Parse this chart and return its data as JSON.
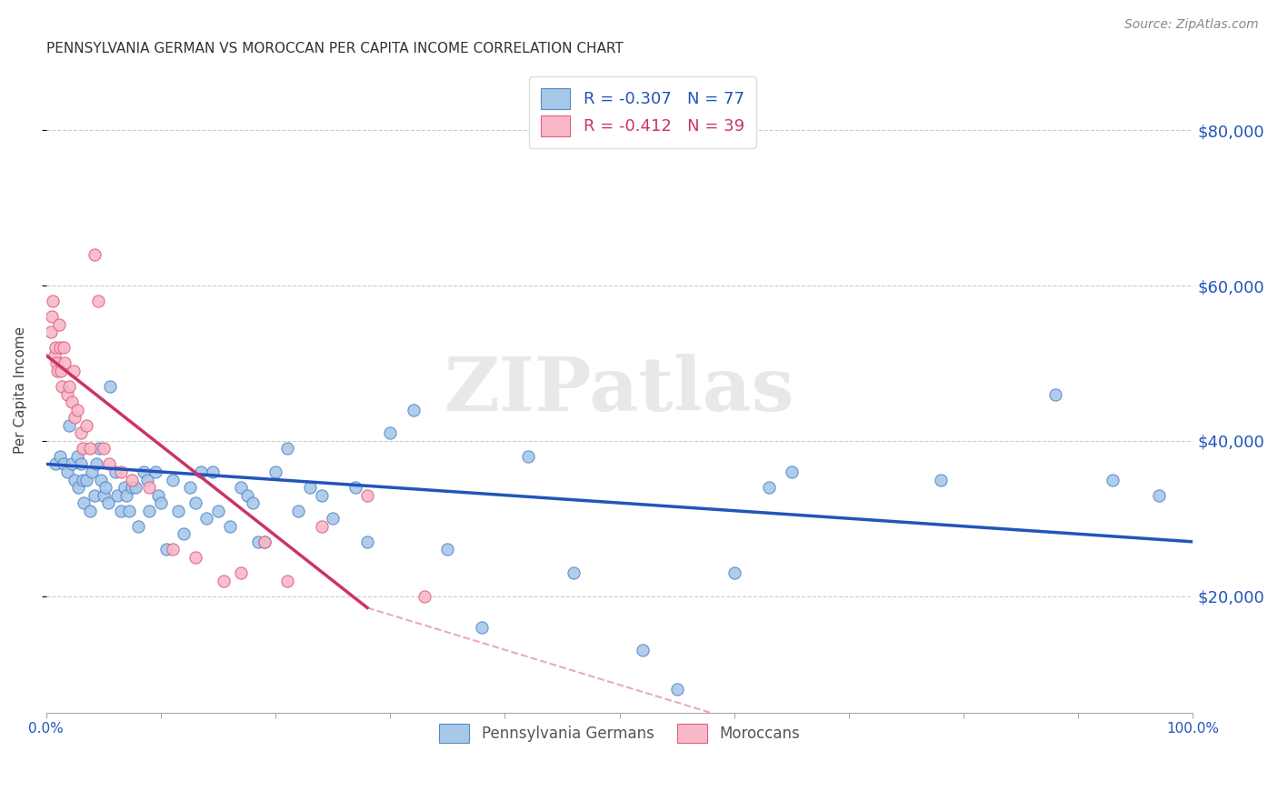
{
  "title": "PENNSYLVANIA GERMAN VS MOROCCAN PER CAPITA INCOME CORRELATION CHART",
  "source": "Source: ZipAtlas.com",
  "ylabel": "Per Capita Income",
  "xlim": [
    0.0,
    1.0
  ],
  "ylim": [
    5000,
    88000
  ],
  "yticks": [
    20000,
    40000,
    60000,
    80000
  ],
  "ytick_labels": [
    "$20,000",
    "$40,000",
    "$60,000",
    "$80,000"
  ],
  "legend_text_blue": "R = -0.307   N = 77",
  "legend_text_pink": "R = -0.412   N = 39",
  "legend_label_blue": "Pennsylvania Germans",
  "legend_label_pink": "Moroccans",
  "watermark": "ZIPatlas",
  "blue_fill": "#a8c8e8",
  "blue_edge": "#5588cc",
  "pink_fill": "#f8b8c8",
  "pink_edge": "#e06080",
  "blue_line_color": "#2255bb",
  "pink_line_color": "#cc3366",
  "dashed_color": "#e8a0b8",
  "scatter_blue_x": [
    0.008,
    0.012,
    0.015,
    0.018,
    0.02,
    0.022,
    0.025,
    0.027,
    0.028,
    0.03,
    0.032,
    0.033,
    0.035,
    0.038,
    0.04,
    0.042,
    0.044,
    0.046,
    0.048,
    0.05,
    0.052,
    0.054,
    0.056,
    0.06,
    0.062,
    0.065,
    0.068,
    0.07,
    0.072,
    0.075,
    0.078,
    0.08,
    0.085,
    0.088,
    0.09,
    0.095,
    0.098,
    0.1,
    0.105,
    0.11,
    0.115,
    0.12,
    0.125,
    0.13,
    0.135,
    0.14,
    0.145,
    0.15,
    0.16,
    0.17,
    0.175,
    0.18,
    0.185,
    0.19,
    0.2,
    0.21,
    0.22,
    0.23,
    0.24,
    0.25,
    0.27,
    0.28,
    0.3,
    0.32,
    0.35,
    0.38,
    0.42,
    0.46,
    0.52,
    0.55,
    0.6,
    0.63,
    0.65,
    0.78,
    0.88,
    0.93,
    0.97
  ],
  "scatter_blue_y": [
    37000,
    38000,
    37000,
    36000,
    42000,
    37000,
    35000,
    38000,
    34000,
    37000,
    35000,
    32000,
    35000,
    31000,
    36000,
    33000,
    37000,
    39000,
    35000,
    33000,
    34000,
    32000,
    47000,
    36000,
    33000,
    31000,
    34000,
    33000,
    31000,
    34000,
    34000,
    29000,
    36000,
    35000,
    31000,
    36000,
    33000,
    32000,
    26000,
    35000,
    31000,
    28000,
    34000,
    32000,
    36000,
    30000,
    36000,
    31000,
    29000,
    34000,
    33000,
    32000,
    27000,
    27000,
    36000,
    39000,
    31000,
    34000,
    33000,
    30000,
    34000,
    27000,
    41000,
    44000,
    26000,
    16000,
    38000,
    23000,
    13000,
    8000,
    23000,
    34000,
    36000,
    35000,
    46000,
    35000,
    33000
  ],
  "scatter_pink_x": [
    0.004,
    0.005,
    0.006,
    0.007,
    0.008,
    0.009,
    0.01,
    0.011,
    0.012,
    0.013,
    0.014,
    0.015,
    0.016,
    0.018,
    0.02,
    0.022,
    0.024,
    0.025,
    0.027,
    0.03,
    0.032,
    0.035,
    0.038,
    0.042,
    0.045,
    0.05,
    0.055,
    0.065,
    0.075,
    0.09,
    0.11,
    0.13,
    0.155,
    0.17,
    0.19,
    0.21,
    0.24,
    0.28,
    0.33
  ],
  "scatter_pink_y": [
    54000,
    56000,
    58000,
    51000,
    52000,
    50000,
    49000,
    55000,
    52000,
    49000,
    47000,
    52000,
    50000,
    46000,
    47000,
    45000,
    49000,
    43000,
    44000,
    41000,
    39000,
    42000,
    39000,
    64000,
    58000,
    39000,
    37000,
    36000,
    35000,
    34000,
    26000,
    25000,
    22000,
    23000,
    27000,
    22000,
    29000,
    33000,
    20000
  ],
  "blue_trend": [
    0.0,
    1.0,
    37000,
    27000
  ],
  "pink_trend_solid": [
    0.0,
    0.28,
    51000,
    18500
  ],
  "pink_trend_dashed": [
    0.28,
    1.0,
    18500,
    -14000
  ]
}
